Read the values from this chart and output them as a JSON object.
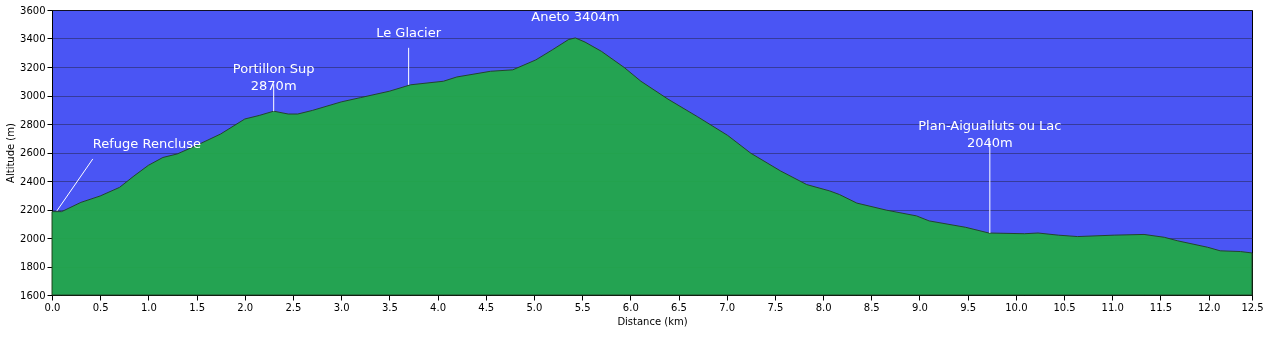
{
  "chart_data": {
    "type": "area",
    "xlabel": "Distance (km)",
    "ylabel": "Altitude (m)",
    "x": [
      0.0,
      0.1,
      0.3,
      0.5,
      0.7,
      0.85,
      1.0,
      1.15,
      1.3,
      1.5,
      1.75,
      2.0,
      2.15,
      2.3,
      2.45,
      2.55,
      2.7,
      3.0,
      3.2,
      3.5,
      3.72,
      4.06,
      4.2,
      4.55,
      4.78,
      5.02,
      5.19,
      5.36,
      5.43,
      5.53,
      5.7,
      5.94,
      6.11,
      6.39,
      6.7,
      7.01,
      7.25,
      7.56,
      7.83,
      8.07,
      8.17,
      8.35,
      8.66,
      8.97,
      9.1,
      9.48,
      9.72,
      10.09,
      10.23,
      10.44,
      10.64,
      11.02,
      11.33,
      11.54,
      11.68,
      11.99,
      12.12,
      12.33,
      12.45
    ],
    "series": [
      {
        "color": "#22a84a",
        "values": [
          2185,
          2185,
          2250,
          2295,
          2355,
          2435,
          2510,
          2565,
          2590,
          2650,
          2730,
          2835,
          2860,
          2890,
          2870,
          2870,
          2895,
          2955,
          2985,
          3030,
          3075,
          3100,
          3130,
          3170,
          3180,
          3250,
          3320,
          3393,
          3404,
          3375,
          3310,
          3195,
          3100,
          2975,
          2850,
          2720,
          2595,
          2470,
          2375,
          2330,
          2305,
          2245,
          2195,
          2155,
          2120,
          2075,
          2035,
          2030,
          2035,
          2020,
          2010,
          2020,
          2025,
          2005,
          1980,
          1935,
          1910,
          1905,
          1895
        ]
      }
    ],
    "xlim": [
      0,
      12.45
    ],
    "xticks": [
      {
        "value": 0,
        "label": "0.0"
      },
      0.5,
      {
        "value": 1,
        "label": "1.0"
      },
      1.5,
      {
        "value": 2,
        "label": "2.0"
      },
      2.5,
      {
        "value": 3,
        "label": "3.0"
      },
      3.5,
      {
        "value": 4,
        "label": "4.0"
      },
      4.5,
      {
        "value": 5,
        "label": "5.0"
      },
      5.5,
      {
        "value": 6,
        "label": "6.0"
      },
      6.5,
      {
        "value": 7,
        "label": "7.0"
      },
      7.5,
      {
        "value": 8,
        "label": "8.0"
      },
      8.5,
      {
        "value": 9,
        "label": "9.0"
      },
      9.5,
      {
        "value": 10,
        "label": "10.0"
      },
      10.5,
      {
        "value": 11,
        "label": "11.0"
      },
      11.5,
      {
        "value": 12,
        "label": "12.0"
      },
      {
        "value": 12.45,
        "label": "12.5"
      }
    ],
    "ylim": [
      1600,
      3600
    ],
    "yticks": [
      1600,
      1800,
      2000,
      2200,
      2400,
      2600,
      2800,
      3000,
      3200,
      3400,
      3600
    ],
    "grid": "y",
    "annotations": [
      {
        "text": "Refuge Rencluse",
        "x": 0.05,
        "y": 2190
      },
      {
        "text": "Portillon Sup\n2870m",
        "x": 2.3,
        "y": 2890
      },
      {
        "text": "Le Glacier",
        "x": 3.7,
        "y": 3075
      },
      {
        "text": "Aneto 3404m",
        "x": 5.43,
        "y": 3404
      },
      {
        "text": "Plan-Aigualluts ou Lac\n2040m",
        "x": 9.73,
        "y": 2035
      }
    ]
  }
}
